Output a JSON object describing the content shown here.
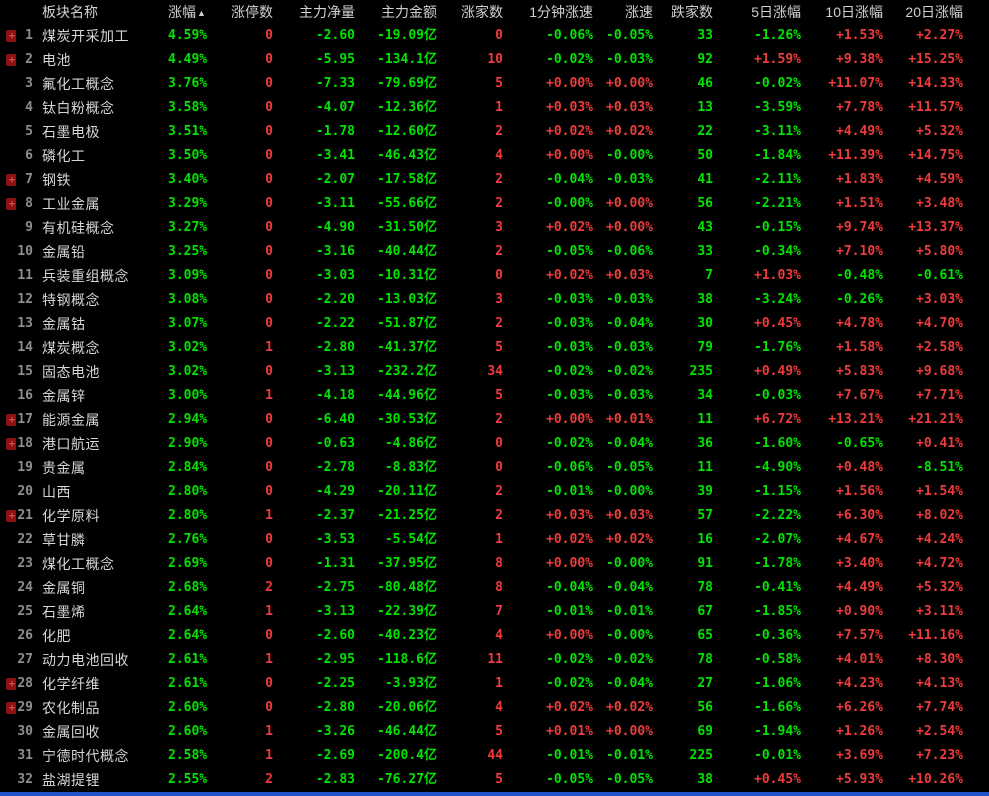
{
  "table": {
    "sort_arrow": "▲",
    "columns": [
      {
        "key": "mark",
        "label": "",
        "width": 16,
        "type": "marker",
        "color": "red",
        "align": "al"
      },
      {
        "key": "idx",
        "label": "",
        "width": 22,
        "color": "gray",
        "align": "ar"
      },
      {
        "key": "name",
        "label": "板块名称",
        "width": 130,
        "color": "white",
        "align": "al"
      },
      {
        "key": "chg",
        "label": "涨幅",
        "width": 42,
        "color": "green",
        "align": "ar",
        "sorted": true
      },
      {
        "key": "lu",
        "label": "涨停数",
        "width": 68,
        "color": "red",
        "align": "ar"
      },
      {
        "key": "net",
        "label": "主力净量",
        "width": 82,
        "color": "signed",
        "align": "ar"
      },
      {
        "key": "amt",
        "label": "主力金额",
        "width": 82,
        "color": "signed",
        "align": "ar"
      },
      {
        "key": "up",
        "label": "涨家数",
        "width": 66,
        "color": "red",
        "align": "ar"
      },
      {
        "key": "sp1",
        "label": "1分钟涨速",
        "width": 90,
        "color": "signed",
        "align": "ar"
      },
      {
        "key": "sp",
        "label": "涨速",
        "width": 60,
        "color": "signed",
        "align": "ar"
      },
      {
        "key": "down",
        "label": "跌家数",
        "width": 60,
        "color": "green",
        "align": "ar"
      },
      {
        "key": "d5",
        "label": "5日涨幅",
        "width": 88,
        "color": "signed",
        "align": "ar"
      },
      {
        "key": "d10",
        "label": "10日涨幅",
        "width": 82,
        "color": "signed",
        "align": "ar"
      },
      {
        "key": "d20",
        "label": "20日涨幅",
        "width": 80,
        "color": "signed",
        "align": "ar"
      }
    ],
    "rows": [
      {
        "mark": true,
        "idx": "1",
        "name": "煤炭开采加工",
        "chg": "4.59%",
        "lu": "0",
        "net": "-2.60",
        "amt": "-19.09亿",
        "up": "0",
        "sp1": "-0.06%",
        "sp": "-0.05%",
        "down": "33",
        "d5": "-1.26%",
        "d10": "+1.53%",
        "d20": "+2.27%"
      },
      {
        "mark": true,
        "idx": "2",
        "name": "电池",
        "chg": "4.49%",
        "lu": "0",
        "net": "-5.95",
        "amt": "-134.1亿",
        "up": "10",
        "sp1": "-0.02%",
        "sp": "-0.03%",
        "down": "92",
        "d5": "+1.59%",
        "d10": "+9.38%",
        "d20": "+15.25%"
      },
      {
        "mark": false,
        "idx": "3",
        "name": "氟化工概念",
        "chg": "3.76%",
        "lu": "0",
        "net": "-7.33",
        "amt": "-79.69亿",
        "up": "5",
        "sp1": "+0.00%",
        "sp": "+0.00%",
        "down": "46",
        "d5": "-0.02%",
        "d10": "+11.07%",
        "d20": "+14.33%"
      },
      {
        "mark": false,
        "idx": "4",
        "name": "钛白粉概念",
        "chg": "3.58%",
        "lu": "0",
        "net": "-4.07",
        "amt": "-12.36亿",
        "up": "1",
        "sp1": "+0.03%",
        "sp": "+0.03%",
        "down": "13",
        "d5": "-3.59%",
        "d10": "+7.78%",
        "d20": "+11.57%"
      },
      {
        "mark": false,
        "idx": "5",
        "name": "石墨电极",
        "chg": "3.51%",
        "lu": "0",
        "net": "-1.78",
        "amt": "-12.60亿",
        "up": "2",
        "sp1": "+0.02%",
        "sp": "+0.02%",
        "down": "22",
        "d5": "-3.11%",
        "d10": "+4.49%",
        "d20": "+5.32%"
      },
      {
        "mark": false,
        "idx": "6",
        "name": "磷化工",
        "chg": "3.50%",
        "lu": "0",
        "net": "-3.41",
        "amt": "-46.43亿",
        "up": "4",
        "sp1": "+0.00%",
        "sp": "-0.00%",
        "down": "50",
        "d5": "-1.84%",
        "d10": "+11.39%",
        "d20": "+14.75%"
      },
      {
        "mark": true,
        "idx": "7",
        "name": "钢铁",
        "chg": "3.40%",
        "lu": "0",
        "net": "-2.07",
        "amt": "-17.58亿",
        "up": "2",
        "sp1": "-0.04%",
        "sp": "-0.03%",
        "down": "41",
        "d5": "-2.11%",
        "d10": "+1.83%",
        "d20": "+4.59%"
      },
      {
        "mark": true,
        "idx": "8",
        "name": "工业金属",
        "chg": "3.29%",
        "lu": "0",
        "net": "-3.11",
        "amt": "-55.66亿",
        "up": "2",
        "sp1": "-0.00%",
        "sp": "+0.00%",
        "down": "56",
        "d5": "-2.21%",
        "d10": "+1.51%",
        "d20": "+3.48%"
      },
      {
        "mark": false,
        "idx": "9",
        "name": "有机硅概念",
        "chg": "3.27%",
        "lu": "0",
        "net": "-4.90",
        "amt": "-31.50亿",
        "up": "3",
        "sp1": "+0.02%",
        "sp": "+0.00%",
        "down": "43",
        "d5": "-0.15%",
        "d10": "+9.74%",
        "d20": "+13.37%"
      },
      {
        "mark": false,
        "idx": "10",
        "name": "金属铅",
        "chg": "3.25%",
        "lu": "0",
        "net": "-3.16",
        "amt": "-40.44亿",
        "up": "2",
        "sp1": "-0.05%",
        "sp": "-0.06%",
        "down": "33",
        "d5": "-0.34%",
        "d10": "+7.10%",
        "d20": "+5.80%"
      },
      {
        "mark": false,
        "idx": "11",
        "name": "兵装重组概念",
        "chg": "3.09%",
        "lu": "0",
        "net": "-3.03",
        "amt": "-10.31亿",
        "up": "0",
        "sp1": "+0.02%",
        "sp": "+0.03%",
        "down": "7",
        "d5": "+1.03%",
        "d10": "-0.48%",
        "d20": "-0.61%"
      },
      {
        "mark": false,
        "idx": "12",
        "name": "特钢概念",
        "chg": "3.08%",
        "lu": "0",
        "net": "-2.20",
        "amt": "-13.03亿",
        "up": "3",
        "sp1": "-0.03%",
        "sp": "-0.03%",
        "down": "38",
        "d5": "-3.24%",
        "d10": "-0.26%",
        "d20": "+3.03%"
      },
      {
        "mark": false,
        "idx": "13",
        "name": "金属钴",
        "chg": "3.07%",
        "lu": "0",
        "net": "-2.22",
        "amt": "-51.87亿",
        "up": "2",
        "sp1": "-0.03%",
        "sp": "-0.04%",
        "down": "30",
        "d5": "+0.45%",
        "d10": "+4.78%",
        "d20": "+4.70%"
      },
      {
        "mark": false,
        "idx": "14",
        "name": "煤炭概念",
        "chg": "3.02%",
        "lu": "1",
        "net": "-2.80",
        "amt": "-41.37亿",
        "up": "5",
        "sp1": "-0.03%",
        "sp": "-0.03%",
        "down": "79",
        "d5": "-1.76%",
        "d10": "+1.58%",
        "d20": "+2.58%"
      },
      {
        "mark": false,
        "idx": "15",
        "name": "固态电池",
        "chg": "3.02%",
        "lu": "0",
        "net": "-3.13",
        "amt": "-232.2亿",
        "up": "34",
        "sp1": "-0.02%",
        "sp": "-0.02%",
        "down": "235",
        "d5": "+0.49%",
        "d10": "+5.83%",
        "d20": "+9.68%"
      },
      {
        "mark": false,
        "idx": "16",
        "name": "金属锌",
        "chg": "3.00%",
        "lu": "1",
        "net": "-4.18",
        "amt": "-44.96亿",
        "up": "5",
        "sp1": "-0.03%",
        "sp": "-0.03%",
        "down": "34",
        "d5": "-0.03%",
        "d10": "+7.67%",
        "d20": "+7.71%"
      },
      {
        "mark": true,
        "idx": "17",
        "name": "能源金属",
        "chg": "2.94%",
        "lu": "0",
        "net": "-6.40",
        "amt": "-30.53亿",
        "up": "2",
        "sp1": "+0.00%",
        "sp": "+0.01%",
        "down": "11",
        "d5": "+6.72%",
        "d10": "+13.21%",
        "d20": "+21.21%"
      },
      {
        "mark": true,
        "idx": "18",
        "name": "港口航运",
        "chg": "2.90%",
        "lu": "0",
        "net": "-0.63",
        "amt": "-4.86亿",
        "up": "0",
        "sp1": "-0.02%",
        "sp": "-0.04%",
        "down": "36",
        "d5": "-1.60%",
        "d10": "-0.65%",
        "d20": "+0.41%"
      },
      {
        "mark": false,
        "idx": "19",
        "name": "贵金属",
        "chg": "2.84%",
        "lu": "0",
        "net": "-2.78",
        "amt": "-8.83亿",
        "up": "0",
        "sp1": "-0.06%",
        "sp": "-0.05%",
        "down": "11",
        "d5": "-4.90%",
        "d10": "+0.48%",
        "d20": "-8.51%"
      },
      {
        "mark": false,
        "idx": "20",
        "name": "山西",
        "chg": "2.80%",
        "lu": "0",
        "net": "-4.29",
        "amt": "-20.11亿",
        "up": "2",
        "sp1": "-0.01%",
        "sp": "-0.00%",
        "down": "39",
        "d5": "-1.15%",
        "d10": "+1.56%",
        "d20": "+1.54%"
      },
      {
        "mark": true,
        "idx": "21",
        "name": "化学原料",
        "chg": "2.80%",
        "lu": "1",
        "net": "-2.37",
        "amt": "-21.25亿",
        "up": "2",
        "sp1": "+0.03%",
        "sp": "+0.03%",
        "down": "57",
        "d5": "-2.22%",
        "d10": "+6.30%",
        "d20": "+8.02%"
      },
      {
        "mark": false,
        "idx": "22",
        "name": "草甘膦",
        "chg": "2.76%",
        "lu": "0",
        "net": "-3.53",
        "amt": "-5.54亿",
        "up": "1",
        "sp1": "+0.02%",
        "sp": "+0.02%",
        "down": "16",
        "d5": "-2.07%",
        "d10": "+4.67%",
        "d20": "+4.24%"
      },
      {
        "mark": false,
        "idx": "23",
        "name": "煤化工概念",
        "chg": "2.69%",
        "lu": "0",
        "net": "-1.31",
        "amt": "-37.95亿",
        "up": "8",
        "sp1": "+0.00%",
        "sp": "-0.00%",
        "down": "91",
        "d5": "-1.78%",
        "d10": "+3.40%",
        "d20": "+4.72%"
      },
      {
        "mark": false,
        "idx": "24",
        "name": "金属铜",
        "chg": "2.68%",
        "lu": "2",
        "net": "-2.75",
        "amt": "-80.48亿",
        "up": "8",
        "sp1": "-0.04%",
        "sp": "-0.04%",
        "down": "78",
        "d5": "-0.41%",
        "d10": "+4.49%",
        "d20": "+5.32%"
      },
      {
        "mark": false,
        "idx": "25",
        "name": "石墨烯",
        "chg": "2.64%",
        "lu": "1",
        "net": "-3.13",
        "amt": "-22.39亿",
        "up": "7",
        "sp1": "-0.01%",
        "sp": "-0.01%",
        "down": "67",
        "d5": "-1.85%",
        "d10": "+0.90%",
        "d20": "+3.11%"
      },
      {
        "mark": false,
        "idx": "26",
        "name": "化肥",
        "chg": "2.64%",
        "lu": "0",
        "net": "-2.60",
        "amt": "-40.23亿",
        "up": "4",
        "sp1": "+0.00%",
        "sp": "-0.00%",
        "down": "65",
        "d5": "-0.36%",
        "d10": "+7.57%",
        "d20": "+11.16%"
      },
      {
        "mark": false,
        "idx": "27",
        "name": "动力电池回收",
        "chg": "2.61%",
        "lu": "1",
        "net": "-2.95",
        "amt": "-118.6亿",
        "up": "11",
        "sp1": "-0.02%",
        "sp": "-0.02%",
        "down": "78",
        "d5": "-0.58%",
        "d10": "+4.01%",
        "d20": "+8.30%"
      },
      {
        "mark": true,
        "idx": "28",
        "name": "化学纤维",
        "chg": "2.61%",
        "lu": "0",
        "net": "-2.25",
        "amt": "-3.93亿",
        "up": "1",
        "sp1": "-0.02%",
        "sp": "-0.04%",
        "down": "27",
        "d5": "-1.06%",
        "d10": "+4.23%",
        "d20": "+4.13%"
      },
      {
        "mark": true,
        "idx": "29",
        "name": "农化制品",
        "chg": "2.60%",
        "lu": "0",
        "net": "-2.80",
        "amt": "-20.06亿",
        "up": "4",
        "sp1": "+0.02%",
        "sp": "+0.02%",
        "down": "56",
        "d5": "-1.66%",
        "d10": "+6.26%",
        "d20": "+7.74%"
      },
      {
        "mark": false,
        "idx": "30",
        "name": "金属回收",
        "chg": "2.60%",
        "lu": "1",
        "net": "-3.26",
        "amt": "-46.44亿",
        "up": "5",
        "sp1": "+0.01%",
        "sp": "+0.00%",
        "down": "69",
        "d5": "-1.94%",
        "d10": "+1.26%",
        "d20": "+2.54%"
      },
      {
        "mark": false,
        "idx": "31",
        "name": "宁德时代概念",
        "chg": "2.58%",
        "lu": "1",
        "net": "-2.69",
        "amt": "-200.4亿",
        "up": "44",
        "sp1": "-0.01%",
        "sp": "-0.01%",
        "down": "225",
        "d5": "-0.01%",
        "d10": "+3.69%",
        "d20": "+7.23%"
      },
      {
        "mark": false,
        "idx": "32",
        "name": "盐湖提锂",
        "chg": "2.55%",
        "lu": "2",
        "net": "-2.83",
        "amt": "-76.27亿",
        "up": "5",
        "sp1": "-0.05%",
        "sp": "-0.05%",
        "down": "38",
        "d5": "+0.45%",
        "d10": "+5.93%",
        "d20": "+10.26%"
      }
    ]
  },
  "marker_icon": {
    "glyph": "+",
    "meaning": "alert-marker"
  },
  "colors": {
    "background": "#000000",
    "up_red": "#ee3c3c",
    "down_green": "#00e400",
    "header_text": "#d0d0d0",
    "index_gray": "#8e8e8e",
    "name_white": "#d6d6d6",
    "scrollbar_blue": "#2453cd",
    "marker_bg": "#8a1212",
    "marker_plus": "#dd4444"
  }
}
